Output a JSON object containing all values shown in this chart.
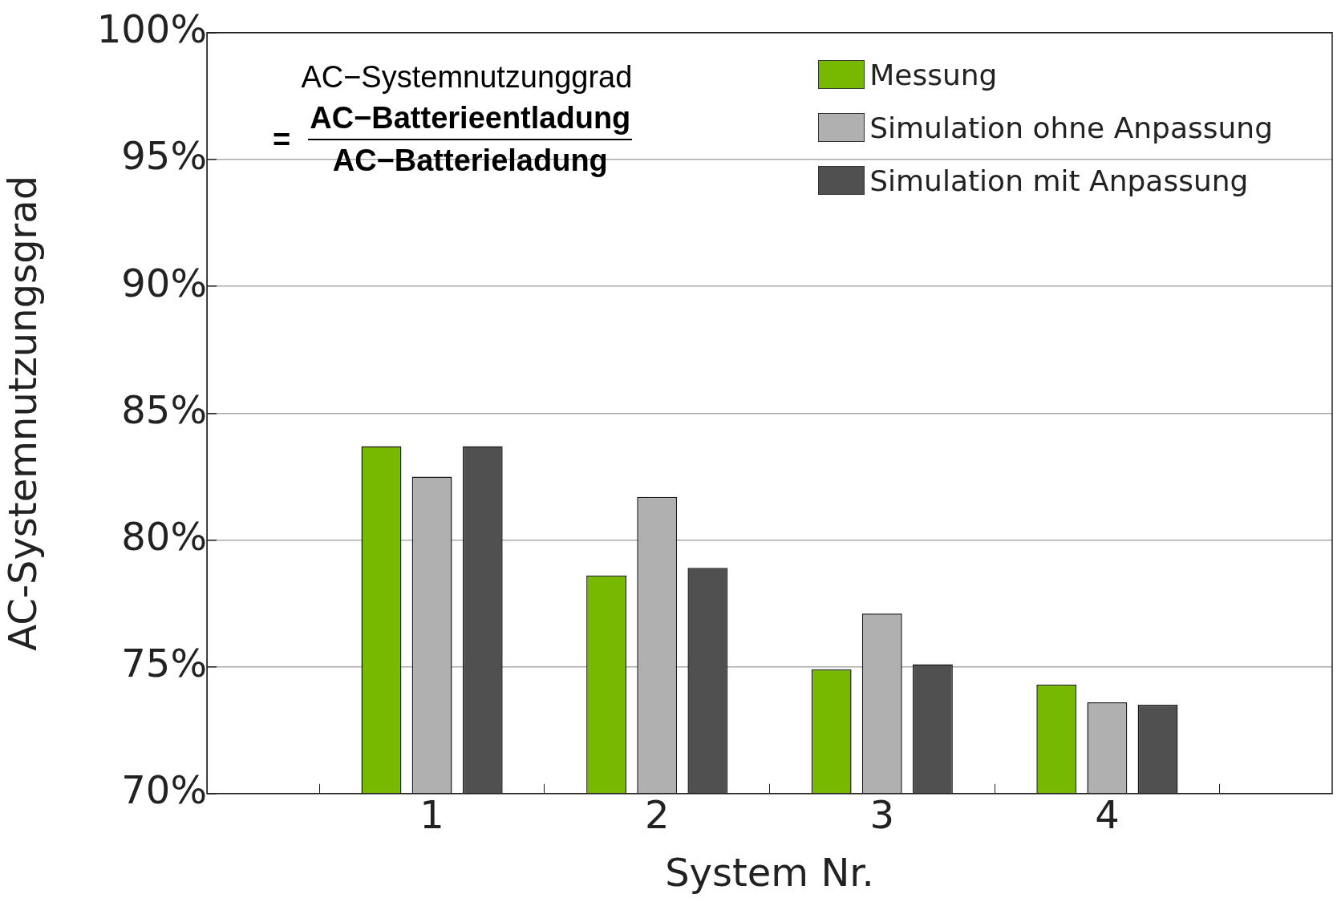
{
  "chart_data": {
    "type": "bar",
    "xlabel": "System Nr.",
    "ylabel": "AC-Systemnutzungsgrad",
    "x": [
      1,
      2,
      3,
      4
    ],
    "xlim": [
      0,
      5
    ],
    "xticks": [
      1,
      2,
      3,
      4
    ],
    "ylim": [
      70,
      100
    ],
    "yticks": [
      {
        "value": 70,
        "label": "70%"
      },
      {
        "value": 75,
        "label": "75%"
      },
      {
        "value": 80,
        "label": "80%"
      },
      {
        "value": 85,
        "label": "85%"
      },
      {
        "value": 90,
        "label": "90%"
      },
      {
        "value": 95,
        "label": "95%"
      },
      {
        "value": 100,
        "label": "100%"
      }
    ],
    "series": [
      {
        "name": "Messung",
        "color": "#76b900",
        "values": [
          83.7,
          78.6,
          74.9,
          74.3
        ]
      },
      {
        "name": "Simulation ohne Anpassung",
        "color": "#b0b0b0",
        "values": [
          82.5,
          81.7,
          77.1,
          73.6
        ]
      },
      {
        "name": "Simulation mit Anpassung",
        "color": "#505050",
        "values": [
          83.7,
          78.9,
          75.1,
          73.5
        ]
      }
    ],
    "annotations": [
      "AC−Systemnutzunggrad",
      "=",
      "AC−Batterieentladung",
      "AC−Batterieladung"
    ],
    "grid": "y",
    "legend": "top right"
  }
}
